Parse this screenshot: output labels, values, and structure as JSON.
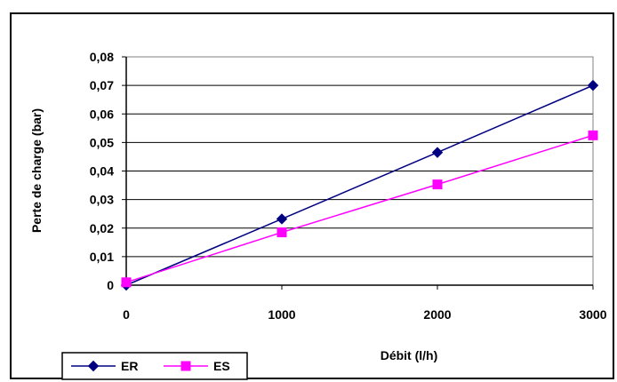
{
  "chart_data": {
    "type": "line",
    "title": "",
    "xlabel": "Débit (l/h)",
    "ylabel": "Perte de charge (bar)",
    "xlim": [
      0,
      3000
    ],
    "ylim": [
      0,
      0.08
    ],
    "x_ticks": [
      "0",
      "1000",
      "2000",
      "3000"
    ],
    "y_ticks": [
      "0",
      "0,01",
      "0,02",
      "0,03",
      "0,04",
      "0,05",
      "0,06",
      "0,07",
      "0,08"
    ],
    "grid": "horizontal",
    "legend_position": "bottom-left",
    "series": [
      {
        "name": "ER",
        "color": "#000080",
        "marker": "diamond",
        "x": [
          0,
          1000,
          2000,
          3000
        ],
        "y": [
          0.0,
          0.0232,
          0.0465,
          0.07
        ]
      },
      {
        "name": "ES",
        "color": "#FF00FF",
        "marker": "square",
        "x": [
          0,
          1000,
          2000,
          3000
        ],
        "y": [
          0.001,
          0.0185,
          0.0353,
          0.0525
        ]
      }
    ]
  }
}
